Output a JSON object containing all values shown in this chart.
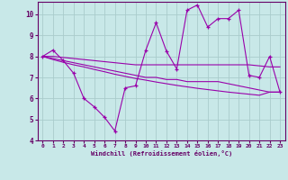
{
  "x": [
    0,
    1,
    2,
    3,
    4,
    5,
    6,
    7,
    8,
    9,
    10,
    11,
    12,
    13,
    14,
    15,
    16,
    17,
    18,
    19,
    20,
    21,
    22,
    23
  ],
  "line1_y": [
    8.0,
    8.3,
    7.8,
    7.2,
    6.0,
    5.6,
    5.1,
    4.45,
    6.5,
    6.6,
    8.3,
    9.6,
    8.25,
    7.4,
    10.2,
    10.45,
    9.4,
    9.8,
    9.8,
    10.2,
    7.1,
    7.0,
    8.0,
    6.3
  ],
  "line2_y": [
    8.0,
    8.0,
    7.95,
    7.9,
    7.85,
    7.8,
    7.75,
    7.7,
    7.65,
    7.6,
    7.6,
    7.6,
    7.6,
    7.6,
    7.6,
    7.6,
    7.6,
    7.6,
    7.6,
    7.6,
    7.6,
    7.55,
    7.5,
    7.5
  ],
  "line3_y": [
    8.0,
    7.9,
    7.8,
    7.7,
    7.6,
    7.5,
    7.4,
    7.3,
    7.2,
    7.1,
    7.0,
    7.0,
    6.9,
    6.9,
    6.8,
    6.8,
    6.8,
    6.8,
    6.7,
    6.6,
    6.5,
    6.4,
    6.3,
    6.3
  ],
  "line4_y": [
    8.0,
    7.85,
    7.72,
    7.6,
    7.5,
    7.38,
    7.27,
    7.15,
    7.05,
    6.95,
    6.87,
    6.78,
    6.7,
    6.62,
    6.55,
    6.48,
    6.42,
    6.36,
    6.3,
    6.25,
    6.2,
    6.15,
    6.3,
    6.3
  ],
  "line_color": "#9900aa",
  "bg_color": "#c8e8e8",
  "grid_color": "#aacccc",
  "axis_color": "#660066",
  "tick_color": "#660066",
  "xlabel": "Windchill (Refroidissement éolien,°C)",
  "ylim": [
    4,
    10.6
  ],
  "xlim": [
    -0.5,
    23.5
  ],
  "yticks": [
    4,
    5,
    6,
    7,
    8,
    9,
    10
  ],
  "xticks": [
    0,
    1,
    2,
    3,
    4,
    5,
    6,
    7,
    8,
    9,
    10,
    11,
    12,
    13,
    14,
    15,
    16,
    17,
    18,
    19,
    20,
    21,
    22,
    23
  ]
}
